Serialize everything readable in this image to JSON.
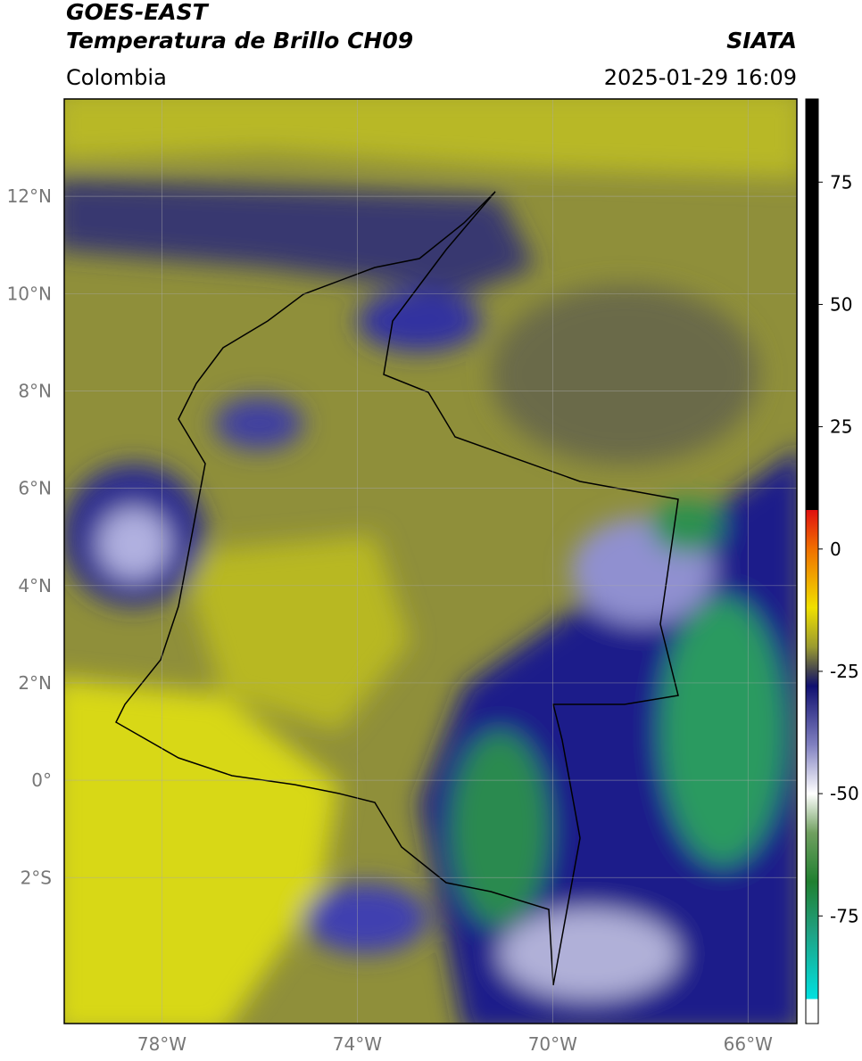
{
  "header": {
    "title": "GOES-EAST",
    "subtitle": "Temperatura de Brillo CH09",
    "source": "SIATA",
    "region": "Colombia",
    "datetime": "2025-01-29 16:09"
  },
  "map": {
    "xlim": [
      -80,
      -65
    ],
    "ylim": [
      -5,
      14
    ],
    "xticks": [
      {
        "value": -78,
        "label": "78°W"
      },
      {
        "value": -74,
        "label": "74°W"
      },
      {
        "value": -70,
        "label": "70°W"
      },
      {
        "value": -66,
        "label": "66°W"
      }
    ],
    "yticks": [
      {
        "value": 12,
        "label": "12°N"
      },
      {
        "value": 10,
        "label": "10°N"
      },
      {
        "value": 8,
        "label": "8°N"
      },
      {
        "value": 6,
        "label": "6°N"
      },
      {
        "value": 4,
        "label": "4°N"
      },
      {
        "value": 2,
        "label": "2°N"
      },
      {
        "value": 0,
        "label": "0°"
      },
      {
        "value": -2,
        "label": "2°S"
      }
    ],
    "grid": true
  },
  "colorbar": {
    "lim": [
      -97,
      92
    ],
    "ticks": [
      75,
      50,
      25,
      0,
      -25,
      -50,
      -75
    ],
    "stops": [
      {
        "value": 92,
        "color": "#000000"
      },
      {
        "value": 8,
        "color": "#000000"
      },
      {
        "value": 8,
        "color": "#e01010"
      },
      {
        "value": 0,
        "color": "#f07000"
      },
      {
        "value": -12,
        "color": "#f0e000"
      },
      {
        "value": -20,
        "color": "#9a9a30"
      },
      {
        "value": -25,
        "color": "#404050"
      },
      {
        "value": -28,
        "color": "#101070"
      },
      {
        "value": -40,
        "color": "#8080c0"
      },
      {
        "value": -50,
        "color": "#ffffff"
      },
      {
        "value": -58,
        "color": "#70a060"
      },
      {
        "value": -68,
        "color": "#208030"
      },
      {
        "value": -78,
        "color": "#20a080"
      },
      {
        "value": -92,
        "color": "#00e0e0"
      },
      {
        "value": -92,
        "color": "#ffffff"
      },
      {
        "value": -97,
        "color": "#ffffff"
      }
    ]
  }
}
